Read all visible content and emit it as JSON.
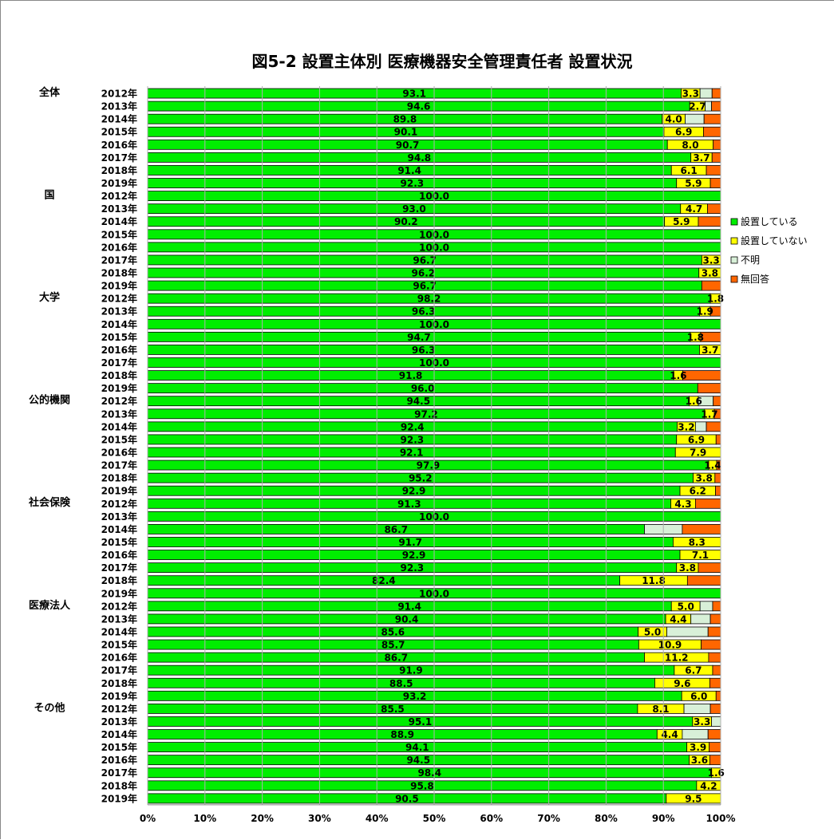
{
  "chart_data": {
    "type": "bar",
    "orientation": "horizontal",
    "stacked": "percent",
    "title": "図5-2 設置主体別 医療機器安全管理責任者 設置状況",
    "x_ticks": [
      "0%",
      "10%",
      "20%",
      "30%",
      "40%",
      "50%",
      "60%",
      "70%",
      "80%",
      "90%",
      "100%"
    ],
    "xlim": [
      0,
      100
    ],
    "legend_position": "right",
    "series": [
      {
        "name": "設置している",
        "color": "#00ee00"
      },
      {
        "name": "設置していない",
        "color": "#ffff00"
      },
      {
        "name": "不明",
        "color": "#d8f0d8"
      },
      {
        "name": "無回答",
        "color": "#ff6600"
      }
    ],
    "groups": [
      {
        "name": "全体",
        "rows": [
          {
            "year": "2012年",
            "values": [
              93.1,
              3.3,
              2.1,
              1.5
            ],
            "labels": [
              "93.1",
              "3.3"
            ]
          },
          {
            "year": "2013年",
            "values": [
              94.6,
              2.7,
              1.1,
              1.6
            ],
            "labels": [
              "94.6",
              "2.7"
            ]
          },
          {
            "year": "2014年",
            "values": [
              89.8,
              4.0,
              3.3,
              2.9
            ],
            "labels": [
              "89.8",
              "4.0"
            ]
          },
          {
            "year": "2015年",
            "values": [
              90.1,
              6.9,
              0.0,
              3.0
            ],
            "labels": [
              "90.1",
              "6.9"
            ]
          },
          {
            "year": "2016年",
            "values": [
              90.7,
              8.0,
              0.0,
              1.3
            ],
            "labels": [
              "90.7",
              "8.0"
            ]
          },
          {
            "year": "2017年",
            "values": [
              94.8,
              3.7,
              0.0,
              1.5
            ],
            "labels": [
              "94.8",
              "3.7"
            ]
          },
          {
            "year": "2018年",
            "values": [
              91.4,
              6.1,
              0.0,
              2.5
            ],
            "labels": [
              "91.4",
              "6.1"
            ]
          },
          {
            "year": "2019年",
            "values": [
              92.3,
              5.9,
              0.0,
              1.8
            ],
            "labels": [
              "92.3",
              "5.9"
            ]
          }
        ]
      },
      {
        "name": "国",
        "rows": [
          {
            "year": "2012年",
            "values": [
              100,
              0,
              0,
              0
            ],
            "labels": [
              "100.0",
              ""
            ]
          },
          {
            "year": "2013年",
            "values": [
              93.0,
              4.7,
              0.0,
              2.3
            ],
            "labels": [
              "93.0",
              "4.7"
            ]
          },
          {
            "year": "2014年",
            "values": [
              90.2,
              5.9,
              0.0,
              3.9
            ],
            "labels": [
              "90.2",
              "5.9"
            ]
          },
          {
            "year": "2015年",
            "values": [
              100,
              0,
              0,
              0
            ],
            "labels": [
              "100.0",
              ""
            ]
          },
          {
            "year": "2016年",
            "values": [
              100,
              0,
              0,
              0
            ],
            "labels": [
              "100.0",
              ""
            ]
          },
          {
            "year": "2017年",
            "values": [
              96.7,
              3.3,
              0.0,
              0.0
            ],
            "labels": [
              "96.7",
              "3.3"
            ]
          },
          {
            "year": "2018年",
            "values": [
              96.2,
              3.8,
              0.0,
              0.0
            ],
            "labels": [
              "96.2",
              "3.8"
            ]
          },
          {
            "year": "2019年",
            "values": [
              96.7,
              0.0,
              0.0,
              3.3
            ],
            "labels": [
              "96.7",
              ""
            ]
          }
        ]
      },
      {
        "name": "大学",
        "rows": [
          {
            "year": "2012年",
            "values": [
              98.2,
              1.8,
              0.0,
              0.0
            ],
            "labels": [
              "98.2",
              "1.8"
            ]
          },
          {
            "year": "2013年",
            "values": [
              96.3,
              1.9,
              0.0,
              1.8
            ],
            "labels": [
              "96.3",
              "1.9"
            ]
          },
          {
            "year": "2014年",
            "values": [
              100,
              0,
              0,
              0
            ],
            "labels": [
              "100.0",
              ""
            ]
          },
          {
            "year": "2015年",
            "values": [
              94.7,
              1.8,
              0.0,
              3.5
            ],
            "labels": [
              "94.7",
              "1.8"
            ]
          },
          {
            "year": "2016年",
            "values": [
              96.3,
              3.7,
              0.0,
              0.0
            ],
            "labels": [
              "96.3",
              "3.7"
            ]
          },
          {
            "year": "2017年",
            "values": [
              100,
              0,
              0,
              0
            ],
            "labels": [
              "100.0",
              ""
            ]
          },
          {
            "year": "2018年",
            "values": [
              91.8,
              1.6,
              0.0,
              6.6
            ],
            "labels": [
              "91.8",
              "1.6"
            ]
          },
          {
            "year": "2019年",
            "values": [
              96.0,
              0.0,
              0.0,
              4.0
            ],
            "labels": [
              "96.0",
              ""
            ]
          }
        ]
      },
      {
        "name": "公的機関",
        "rows": [
          {
            "year": "2012年",
            "values": [
              94.5,
              1.6,
              2.6,
              1.3
            ],
            "labels": [
              "94.5",
              "1.6"
            ]
          },
          {
            "year": "2013年",
            "values": [
              97.2,
              1.7,
              0.0,
              1.1
            ],
            "labels": [
              "97.2",
              "1.7"
            ]
          },
          {
            "year": "2014年",
            "values": [
              92.4,
              3.2,
              1.9,
              2.5
            ],
            "labels": [
              "92.4",
              "3.2"
            ]
          },
          {
            "year": "2015年",
            "values": [
              92.3,
              6.9,
              0.0,
              0.8
            ],
            "labels": [
              "92.3",
              "6.9"
            ]
          },
          {
            "year": "2016年",
            "values": [
              92.1,
              7.9,
              0.0,
              0.0
            ],
            "labels": [
              "92.1",
              "7.9"
            ]
          },
          {
            "year": "2017年",
            "values": [
              97.9,
              1.4,
              0.0,
              0.7
            ],
            "labels": [
              "97.9",
              "1.4"
            ]
          },
          {
            "year": "2018年",
            "values": [
              95.2,
              3.8,
              0.0,
              1.0
            ],
            "labels": [
              "95.2",
              "3.8"
            ]
          },
          {
            "year": "2019年",
            "values": [
              92.9,
              6.2,
              0.0,
              0.9
            ],
            "labels": [
              "92.9",
              "6.2"
            ]
          }
        ]
      },
      {
        "name": "社会保険",
        "rows": [
          {
            "year": "2012年",
            "values": [
              91.3,
              4.3,
              0.0,
              4.4
            ],
            "labels": [
              "91.3",
              "4.3"
            ]
          },
          {
            "year": "2013年",
            "values": [
              100,
              0,
              0,
              0
            ],
            "labels": [
              "100.0",
              ""
            ]
          },
          {
            "year": "2014年",
            "values": [
              86.7,
              0.0,
              6.6,
              6.7
            ],
            "labels": [
              "86.7",
              ""
            ]
          },
          {
            "year": "2015年",
            "values": [
              91.7,
              8.3,
              0.0,
              0.0
            ],
            "labels": [
              "91.7",
              "8.3"
            ]
          },
          {
            "year": "2016年",
            "values": [
              92.9,
              7.1,
              0.0,
              0.0
            ],
            "labels": [
              "92.9",
              "7.1"
            ]
          },
          {
            "year": "2017年",
            "values": [
              92.3,
              3.8,
              0.0,
              3.9
            ],
            "labels": [
              "92.3",
              "3.8"
            ]
          },
          {
            "year": "2018年",
            "values": [
              82.4,
              11.8,
              0.0,
              5.8
            ],
            "labels": [
              "82.4",
              "11.8"
            ]
          },
          {
            "year": "2019年",
            "values": [
              100,
              0,
              0,
              0
            ],
            "labels": [
              "100.0",
              ""
            ]
          }
        ]
      },
      {
        "name": "医療法人",
        "rows": [
          {
            "year": "2012年",
            "values": [
              91.4,
              5.0,
              2.2,
              1.4
            ],
            "labels": [
              "91.4",
              "5.0"
            ]
          },
          {
            "year": "2013年",
            "values": [
              90.4,
              4.4,
              3.4,
              1.8
            ],
            "labels": [
              "90.4",
              "4.4"
            ]
          },
          {
            "year": "2014年",
            "values": [
              85.6,
              5.0,
              7.2,
              2.2
            ],
            "labels": [
              "85.6",
              "5.0"
            ]
          },
          {
            "year": "2015年",
            "values": [
              85.7,
              10.9,
              0.0,
              3.4
            ],
            "labels": [
              "85.7",
              "10.9"
            ]
          },
          {
            "year": "2016年",
            "values": [
              86.7,
              11.2,
              0.0,
              2.1
            ],
            "labels": [
              "86.7",
              "11.2"
            ]
          },
          {
            "year": "2017年",
            "values": [
              91.9,
              6.7,
              0.0,
              1.4
            ],
            "labels": [
              "91.9",
              "6.7"
            ]
          },
          {
            "year": "2018年",
            "values": [
              88.5,
              9.6,
              0.0,
              1.9
            ],
            "labels": [
              "88.5",
              "9.6"
            ]
          },
          {
            "year": "2019年",
            "values": [
              93.2,
              6.0,
              0.0,
              0.8
            ],
            "labels": [
              "93.2",
              "6.0"
            ]
          }
        ]
      },
      {
        "name": "その他",
        "rows": [
          {
            "year": "2012年",
            "values": [
              85.5,
              8.1,
              4.6,
              1.8
            ],
            "labels": [
              "85.5",
              "8.1"
            ]
          },
          {
            "year": "2013年",
            "values": [
              95.1,
              3.3,
              1.6,
              0.0
            ],
            "labels": [
              "95.1",
              "3.3"
            ]
          },
          {
            "year": "2014年",
            "values": [
              88.9,
              4.4,
              4.5,
              2.2
            ],
            "labels": [
              "88.9",
              "4.4"
            ]
          },
          {
            "year": "2015年",
            "values": [
              94.1,
              3.9,
              0.0,
              2.0
            ],
            "labels": [
              "94.1",
              "3.9"
            ]
          },
          {
            "year": "2016年",
            "values": [
              94.5,
              3.6,
              0.0,
              1.9
            ],
            "labels": [
              "94.5",
              "3.6"
            ]
          },
          {
            "year": "2017年",
            "values": [
              98.4,
              1.6,
              0.0,
              0.0
            ],
            "labels": [
              "98.4",
              "1.6"
            ]
          },
          {
            "year": "2018年",
            "values": [
              95.8,
              4.2,
              0.0,
              0.0
            ],
            "labels": [
              "95.8",
              "4.2"
            ]
          },
          {
            "year": "2019年",
            "values": [
              90.5,
              9.5,
              0.0,
              0.0
            ],
            "labels": [
              "90.5",
              "9.5"
            ]
          }
        ]
      }
    ]
  }
}
